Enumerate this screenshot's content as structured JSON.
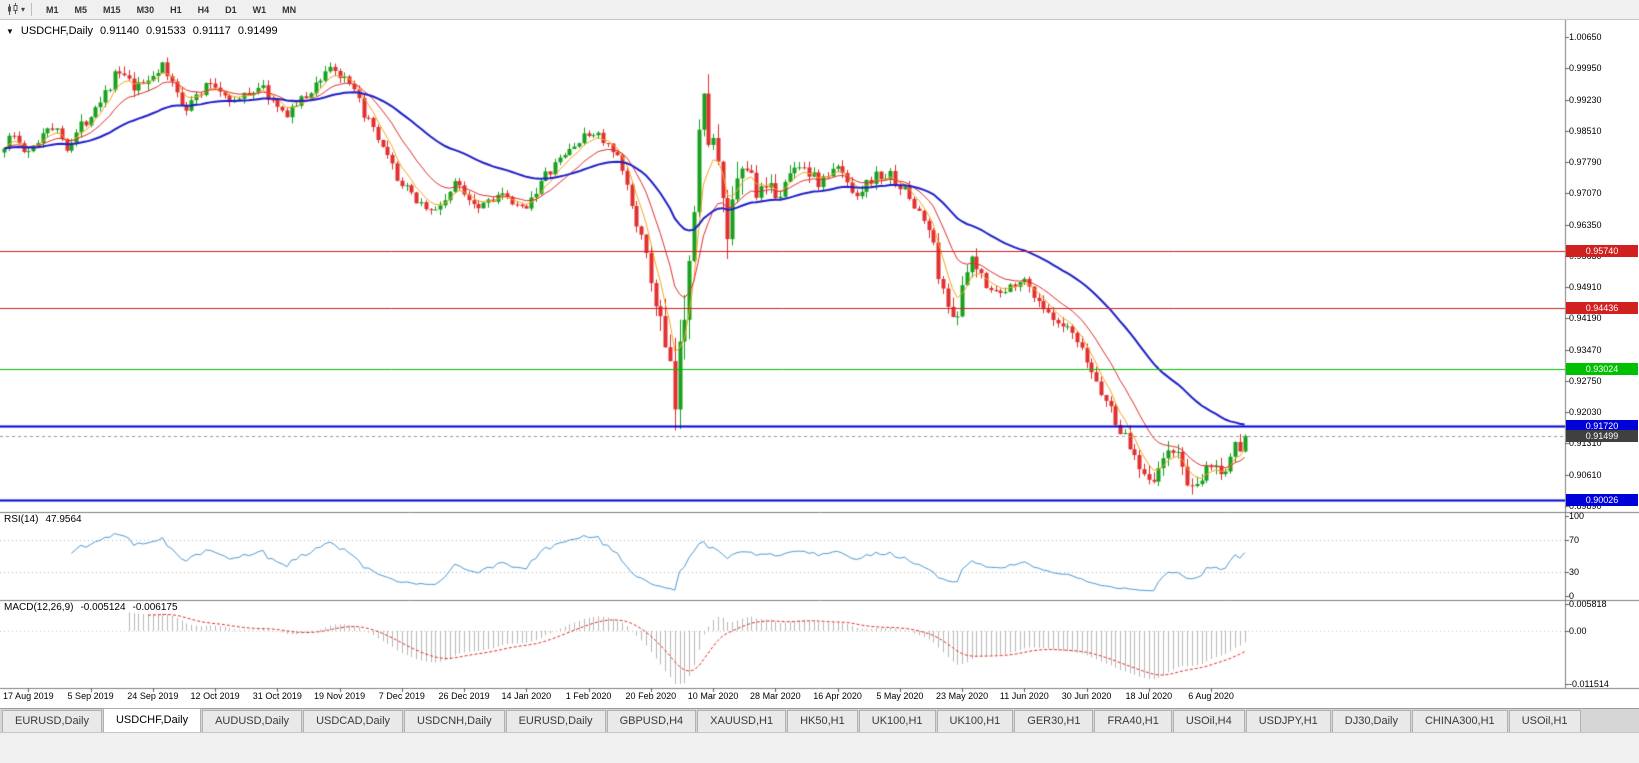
{
  "icons": {
    "collapse": "▼",
    "dropdown": "▾"
  },
  "toolbar": {
    "chart_type_icon": "candlestick-chart",
    "timeframes": [
      "M1",
      "M5",
      "M15",
      "M30",
      "H1",
      "H4",
      "D1",
      "W1",
      "MN"
    ]
  },
  "chart_header": {
    "symbol": "USDCHF,Daily",
    "open": "0.91140",
    "high": "0.91533",
    "low": "0.91117",
    "close": "0.91499"
  },
  "price_axis": {
    "labels": [
      "1.00650",
      "0.99950",
      "0.99230",
      "0.98510",
      "0.97790",
      "0.97070",
      "0.96350",
      "0.95630",
      "0.94910",
      "0.94190",
      "0.93470",
      "0.92750",
      "0.92030",
      "0.91310",
      "0.90610",
      "0.89890"
    ],
    "range": [
      1.0065,
      0.8989
    ]
  },
  "levels": [
    {
      "value": 0.9574,
      "label": "0.95740",
      "color": "#d02020",
      "width": 1
    },
    {
      "value": 0.94436,
      "label": "0.94436",
      "color": "#d02020",
      "width": 1
    },
    {
      "value": 0.93024,
      "label": "0.93024",
      "color": "#00c000",
      "width": 1
    },
    {
      "value": 0.9172,
      "label": "0.91720",
      "color": "#0000d8",
      "width": 2
    },
    {
      "value": 0.90026,
      "label": "0.90026",
      "color": "#0000d8",
      "width": 2
    }
  ],
  "current_price": {
    "value": 0.91499,
    "label": "0.91499",
    "tag_color": "#404040"
  },
  "rsi_panel": {
    "name": "RSI(14)",
    "value": "47.9564",
    "axis_labels": [
      "100",
      "70",
      "30",
      "0"
    ],
    "axis_values": [
      100,
      70,
      30,
      0
    ],
    "line_color": "#4f9bd3",
    "level_lines": [
      70,
      30
    ]
  },
  "macd_panel": {
    "name": "MACD(12,26,9)",
    "value1": "-0.005124",
    "value2": "-0.006175",
    "axis_labels": [
      "0.005818",
      "0.00",
      "-0.011514"
    ],
    "axis_max": 0.005818,
    "axis_min": -0.011514,
    "histogram_color": "#b9b9b9",
    "signal_color": "#e03030"
  },
  "time_axis": {
    "labels": [
      "17 Aug 2019",
      "5 Sep 2019",
      "24 Sep 2019",
      "12 Oct 2019",
      "31 Oct 2019",
      "19 Nov 2019",
      "7 Dec 2019",
      "26 Dec 2019",
      "14 Jan 2020",
      "1 Feb 2020",
      "20 Feb 2020",
      "10 Mar 2020",
      "28 Mar 2020",
      "16 Apr 2020",
      "5 May 2020",
      "23 May 2020",
      "11 Jun 2020",
      "30 Jun 2020",
      "18 Jul 2020",
      "6 Aug 2020"
    ]
  },
  "tabs": {
    "items": [
      {
        "label": "EURUSD,Daily",
        "active": false
      },
      {
        "label": "USDCHF,Daily",
        "active": true
      },
      {
        "label": "AUDUSD,Daily",
        "active": false
      },
      {
        "label": "USDCAD,Daily",
        "active": false
      },
      {
        "label": "USDCNH,Daily",
        "active": false
      },
      {
        "label": "EURUSD,Daily",
        "active": false
      },
      {
        "label": "GBPUSD,H4",
        "active": false
      },
      {
        "label": "XAUUSD,H1",
        "active": false
      },
      {
        "label": "HK50,H1",
        "active": false
      },
      {
        "label": "UK100,H1",
        "active": false
      },
      {
        "label": "UK100,H1",
        "active": false
      },
      {
        "label": "GER30,H1",
        "active": false
      },
      {
        "label": "FRA40,H1",
        "active": false
      },
      {
        "label": "USOil,H4",
        "active": false
      },
      {
        "label": "USDJPY,H1",
        "active": false
      },
      {
        "label": "DJ30,Daily",
        "active": false
      },
      {
        "label": "CHINA300,H1",
        "active": false
      },
      {
        "label": "USOil,H1",
        "active": false
      }
    ]
  },
  "chart_data": {
    "type": "candlestick",
    "symbol": "USDCHF",
    "timeframe": "Daily",
    "x_range": [
      "17 Aug 2019",
      "6 Aug 2020"
    ],
    "y_range": [
      0.8989,
      1.0065
    ],
    "candle_count": 260,
    "up_color": "#19a11f",
    "down_color": "#e03030",
    "price_path": [
      [
        0.0,
        0.98
      ],
      [
        0.01,
        0.9845
      ],
      [
        0.022,
        0.979
      ],
      [
        0.04,
        0.987
      ],
      [
        0.055,
        0.9815
      ],
      [
        0.075,
        0.99
      ],
      [
        0.095,
        0.9985
      ],
      [
        0.11,
        0.994
      ],
      [
        0.13,
        1.0
      ],
      [
        0.15,
        0.9905
      ],
      [
        0.17,
        0.996
      ],
      [
        0.19,
        0.9915
      ],
      [
        0.21,
        0.9955
      ],
      [
        0.228,
        0.9885
      ],
      [
        0.248,
        0.993
      ],
      [
        0.266,
        1.0
      ],
      [
        0.285,
        0.994
      ],
      [
        0.305,
        0.9825
      ],
      [
        0.325,
        0.972
      ],
      [
        0.35,
        0.966
      ],
      [
        0.368,
        0.973
      ],
      [
        0.385,
        0.968
      ],
      [
        0.402,
        0.9705
      ],
      [
        0.42,
        0.9665
      ],
      [
        0.44,
        0.9745
      ],
      [
        0.462,
        0.9815
      ],
      [
        0.48,
        0.985
      ],
      [
        0.5,
        0.9775
      ],
      [
        0.515,
        0.963
      ],
      [
        0.532,
        0.942
      ],
      [
        0.545,
        0.9205
      ],
      [
        0.555,
        0.956
      ],
      [
        0.566,
        0.9915
      ],
      [
        0.576,
        0.982
      ],
      [
        0.586,
        0.96
      ],
      [
        0.6,
        0.9775
      ],
      [
        0.614,
        0.97
      ],
      [
        0.63,
        0.9715
      ],
      [
        0.645,
        0.978
      ],
      [
        0.66,
        0.973
      ],
      [
        0.676,
        0.9765
      ],
      [
        0.69,
        0.9705
      ],
      [
        0.705,
        0.9745
      ],
      [
        0.72,
        0.9745
      ],
      [
        0.735,
        0.969
      ],
      [
        0.75,
        0.962
      ],
      [
        0.762,
        0.9455
      ],
      [
        0.772,
        0.943
      ],
      [
        0.782,
        0.955
      ],
      [
        0.795,
        0.9505
      ],
      [
        0.808,
        0.947
      ],
      [
        0.822,
        0.9515
      ],
      [
        0.836,
        0.947
      ],
      [
        0.85,
        0.9405
      ],
      [
        0.864,
        0.9385
      ],
      [
        0.878,
        0.931
      ],
      [
        0.892,
        0.923
      ],
      [
        0.906,
        0.915
      ],
      [
        0.92,
        0.908
      ],
      [
        0.932,
        0.905
      ],
      [
        0.944,
        0.913
      ],
      [
        0.955,
        0.907
      ],
      [
        0.963,
        0.9005
      ],
      [
        0.971,
        0.9065
      ],
      [
        0.979,
        0.909
      ],
      [
        0.986,
        0.905
      ],
      [
        0.993,
        0.911
      ],
      [
        1.0,
        0.915
      ]
    ],
    "volatility": {
      "base": 0.0016,
      "spikes": [
        [
          0.095,
          0.05,
          0.0005
        ],
        [
          0.545,
          0.02,
          0.0035
        ],
        [
          0.57,
          0.03,
          0.003
        ],
        [
          0.6,
          0.04,
          0.0012
        ],
        [
          0.762,
          0.03,
          0.001
        ],
        [
          0.93,
          0.06,
          0.0008
        ]
      ]
    },
    "last_candle": [
      0.9114,
      0.91533,
      0.91117,
      0.91499
    ],
    "moving_averages": [
      {
        "period": 5,
        "color": "#f5a623",
        "width": 1
      },
      {
        "period": 13,
        "color": "#e03030",
        "width": 1
      },
      {
        "period": 40,
        "color": "#2020c8",
        "width": 2
      }
    ],
    "indicators": {
      "rsi": {
        "period": 14,
        "last": 47.9564
      },
      "macd": {
        "fast": 12,
        "slow": 26,
        "signal": 9,
        "last": [
          -0.005124,
          -0.006175
        ]
      }
    }
  }
}
